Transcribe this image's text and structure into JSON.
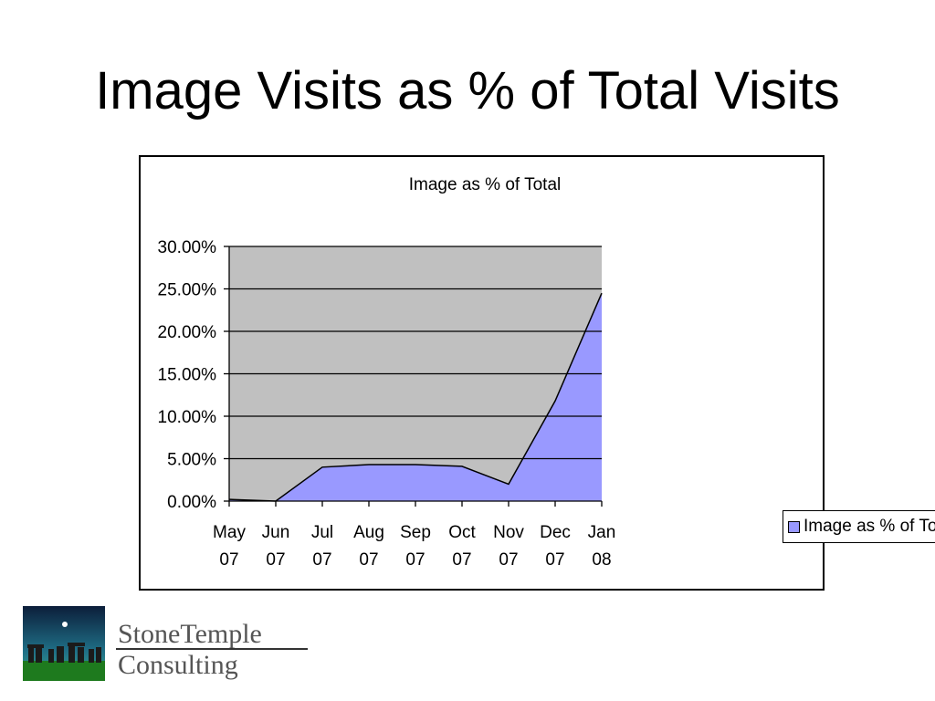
{
  "slide": {
    "title": "Image Visits as % of Total Visits"
  },
  "logo": {
    "line1": "StoneTemple",
    "line2": "Consulting"
  },
  "colors": {
    "plot_background": "#c0c0c0",
    "area_fill": "#9999ff",
    "line": "#000000"
  },
  "chart_data": {
    "type": "area",
    "title": "Image as % of Total",
    "xlabel": "",
    "ylabel": "",
    "categories": [
      [
        "May",
        "07"
      ],
      [
        "Jun",
        "07"
      ],
      [
        "Jul",
        "07"
      ],
      [
        "Aug",
        "07"
      ],
      [
        "Sep",
        "07"
      ],
      [
        "Oct",
        "07"
      ],
      [
        "Nov",
        "07"
      ],
      [
        "Dec",
        "07"
      ],
      [
        "Jan",
        "08"
      ]
    ],
    "series": [
      {
        "name": "Image as % of Total",
        "values": [
          0.2,
          0.0,
          4.0,
          4.3,
          4.3,
          4.1,
          2.0,
          11.8,
          24.5
        ]
      }
    ],
    "ylim": [
      0,
      30
    ],
    "yticks": [
      "0.00%",
      "5.00%",
      "10.00%",
      "15.00%",
      "20.00%",
      "25.00%",
      "30.00%"
    ],
    "ytick_values": [
      0,
      5,
      10,
      15,
      20,
      25,
      30
    ],
    "grid": true,
    "legend": "right"
  }
}
